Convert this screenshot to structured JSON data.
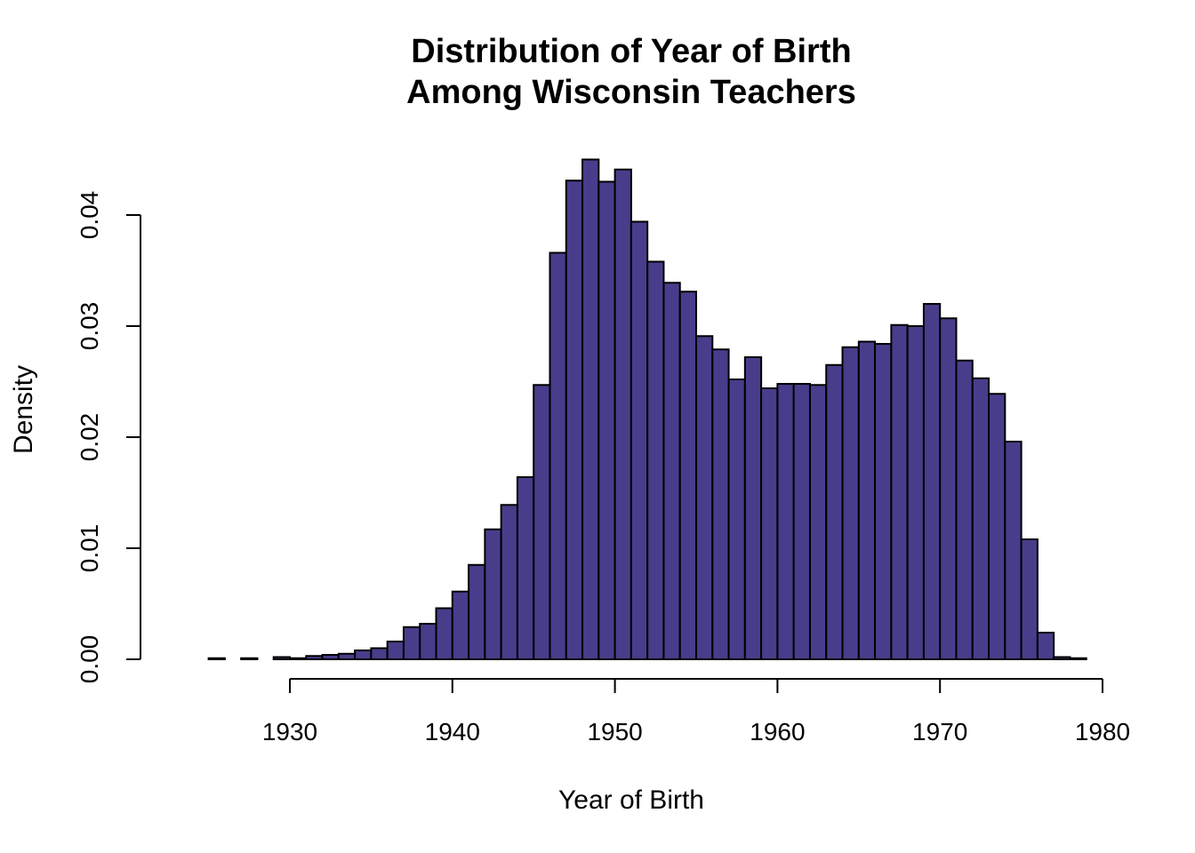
{
  "chart_data": {
    "type": "bar",
    "title_lines": [
      "Distribution of Year of Birth",
      "Among Wisconsin Teachers"
    ],
    "xlabel": "Year of Birth",
    "ylabel": "Density",
    "xlim": [
      1923,
      1979
    ],
    "ylim": [
      0,
      0.045
    ],
    "x_ticks": [
      "1930",
      "1940",
      "1950",
      "1960",
      "1970",
      "1980"
    ],
    "y_ticks": [
      "0.00",
      "0.01",
      "0.02",
      "0.03",
      "0.04"
    ],
    "bar_color": "#483D8B",
    "bin_width": 1,
    "bins_start": [
      1923,
      1924,
      1925,
      1926,
      1927,
      1928,
      1929,
      1930,
      1931,
      1932,
      1933,
      1934,
      1935,
      1936,
      1937,
      1938,
      1939,
      1940,
      1941,
      1942,
      1943,
      1944,
      1945,
      1946,
      1947,
      1948,
      1949,
      1950,
      1951,
      1952,
      1953,
      1954,
      1955,
      1956,
      1957,
      1958,
      1959,
      1960,
      1961,
      1962,
      1963,
      1964,
      1965,
      1966,
      1967,
      1968,
      1969,
      1970,
      1971,
      1972,
      1973,
      1974,
      1975,
      1976,
      1977,
      1978
    ],
    "values": [
      0.0,
      0.0,
      0.0001,
      0.0,
      0.0001,
      0.0,
      0.0002,
      0.0001,
      0.0003,
      0.0004,
      0.0005,
      0.0008,
      0.001,
      0.0016,
      0.0029,
      0.0032,
      0.0046,
      0.0061,
      0.0085,
      0.0117,
      0.0139,
      0.0164,
      0.0247,
      0.0366,
      0.0431,
      0.045,
      0.043,
      0.0441,
      0.0394,
      0.0358,
      0.0339,
      0.0331,
      0.0291,
      0.0279,
      0.0252,
      0.0272,
      0.0244,
      0.0248,
      0.0248,
      0.0247,
      0.0265,
      0.0281,
      0.0286,
      0.0284,
      0.0301,
      0.03,
      0.032,
      0.0307,
      0.0269,
      0.0253,
      0.0239,
      0.0196,
      0.0108,
      0.0024,
      0.0002,
      0.0001
    ]
  }
}
